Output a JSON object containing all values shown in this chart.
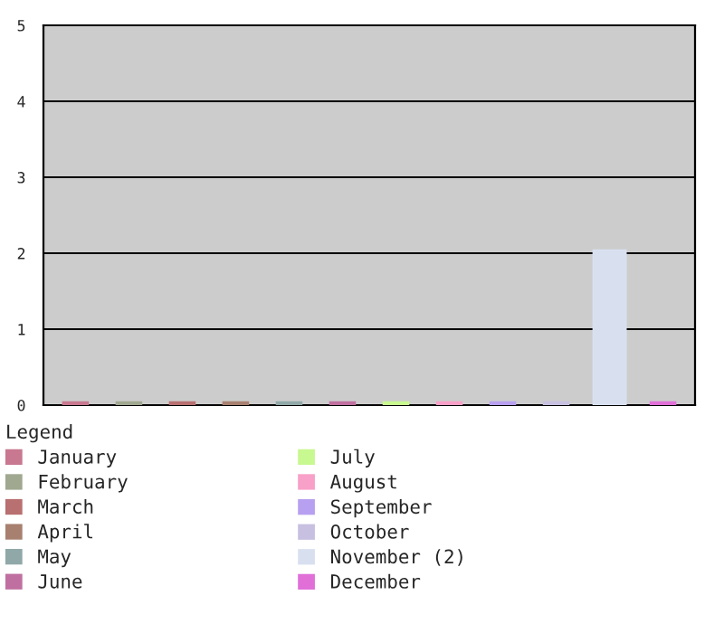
{
  "chart_data": {
    "type": "bar",
    "categories": [
      null,
      null,
      null,
      null,
      null,
      null,
      null,
      null,
      null,
      null,
      null,
      null
    ],
    "series": [
      {
        "name": "January",
        "color": "#c87890",
        "values": [
          0,
          null,
          null,
          null,
          null,
          null,
          null,
          null,
          null,
          null,
          null,
          null
        ]
      },
      {
        "name": "February",
        "color": "#a0a890",
        "values": [
          null,
          0,
          null,
          null,
          null,
          null,
          null,
          null,
          null,
          null,
          null,
          null
        ]
      },
      {
        "name": "March",
        "color": "#b87070",
        "values": [
          null,
          null,
          0,
          null,
          null,
          null,
          null,
          null,
          null,
          null,
          null,
          null
        ]
      },
      {
        "name": "April",
        "color": "#a88070",
        "values": [
          null,
          null,
          null,
          0,
          null,
          null,
          null,
          null,
          null,
          null,
          null,
          null
        ]
      },
      {
        "name": "May",
        "color": "#90a8a8",
        "values": [
          null,
          null,
          null,
          null,
          0,
          null,
          null,
          null,
          null,
          null,
          null,
          null
        ]
      },
      {
        "name": "June",
        "color": "#c070a0",
        "values": [
          null,
          null,
          null,
          null,
          null,
          0,
          null,
          null,
          null,
          null,
          null,
          null
        ]
      },
      {
        "name": "July",
        "color": "#c8f890",
        "values": [
          null,
          null,
          null,
          null,
          null,
          null,
          0,
          null,
          null,
          null,
          null,
          null
        ]
      },
      {
        "name": "August",
        "color": "#f8a0c8",
        "values": [
          null,
          null,
          null,
          null,
          null,
          null,
          null,
          0,
          null,
          null,
          null,
          null
        ]
      },
      {
        "name": "September",
        "color": "#b8a0f0",
        "values": [
          null,
          null,
          null,
          null,
          null,
          null,
          null,
          null,
          0,
          null,
          null,
          null
        ]
      },
      {
        "name": "October",
        "color": "#c8c0e0",
        "values": [
          null,
          null,
          null,
          null,
          null,
          null,
          null,
          null,
          null,
          0,
          null,
          null
        ]
      },
      {
        "name": "November (2)",
        "color": "#d8e0f0",
        "values": [
          null,
          null,
          null,
          null,
          null,
          null,
          null,
          null,
          null,
          null,
          2,
          null
        ]
      },
      {
        "name": "December",
        "color": "#e070d8",
        "values": [
          null,
          null,
          null,
          null,
          null,
          null,
          null,
          null,
          null,
          null,
          null,
          0
        ]
      }
    ],
    "ylim": [
      0,
      5
    ],
    "yticks": [
      0,
      1,
      2,
      3,
      4,
      5
    ],
    "grid": "y",
    "legend": "bottom",
    "legend_title": "Legend"
  }
}
